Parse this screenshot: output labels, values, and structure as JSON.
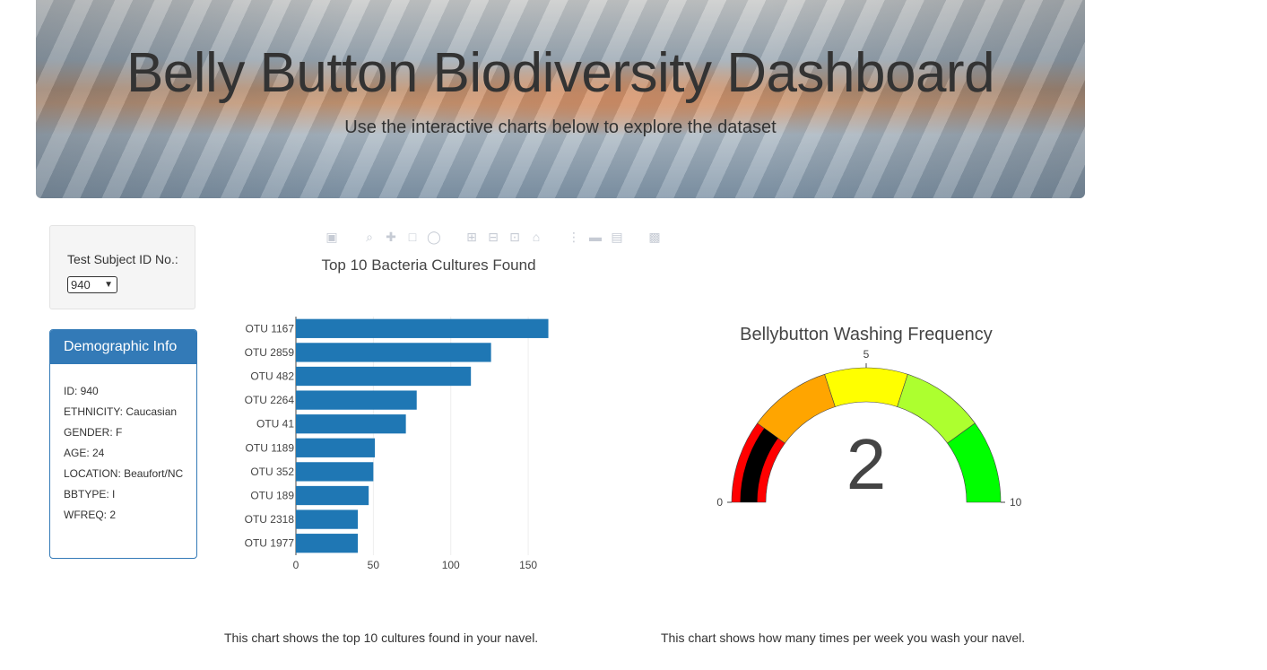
{
  "header": {
    "title": "Belly Button Biodiversity Dashboard",
    "subtitle": "Use the interactive charts below to explore the dataset"
  },
  "selector": {
    "label": "Test Subject ID No.:",
    "selected": "940"
  },
  "demographic": {
    "heading": "Demographic Info",
    "rows": [
      "ID: 940",
      "ETHNICITY: Caucasian",
      "GENDER: F",
      "AGE: 24",
      "LOCATION: Beaufort/NC",
      "BBTYPE: I",
      "WFREQ: 2"
    ]
  },
  "toolbar": {
    "icons": [
      "camera-icon",
      "zoom-icon",
      "pan-icon",
      "box-select-icon",
      "lasso-select-icon",
      "zoom-in-icon",
      "zoom-out-icon",
      "autoscale-icon",
      "reset-axes-icon",
      "spike-lines-icon",
      "hover-closest-icon",
      "hover-compare-icon",
      "plotly-logo-icon"
    ]
  },
  "bar_caption": "This chart shows the top 10 cultures found in your navel.",
  "gauge_caption": "This chart shows how many times per week you wash your navel.",
  "chart_data": [
    {
      "type": "bar",
      "orientation": "horizontal",
      "title": "Top 10 Bacteria Cultures Found",
      "categories": [
        "OTU 1167",
        "OTU 2859",
        "OTU 482",
        "OTU 2264",
        "OTU 41",
        "OTU 1189",
        "OTU 352",
        "OTU 189",
        "OTU 2318",
        "OTU 1977"
      ],
      "values": [
        163,
        126,
        113,
        78,
        71,
        51,
        50,
        47,
        40,
        40
      ],
      "xlim": [
        0,
        165
      ],
      "xticks": [
        "0",
        "50",
        "100",
        "150"
      ],
      "color": "#1f77b4",
      "grid": true
    },
    {
      "type": "gauge",
      "title": "Bellybutton Washing Frequency",
      "value": 2,
      "range": [
        0,
        10
      ],
      "ticks": [
        "0",
        "5",
        "10"
      ],
      "bar_color": "#000000",
      "steps": [
        {
          "range": [
            0,
            2
          ],
          "color": "#ff0000"
        },
        {
          "range": [
            2,
            4
          ],
          "color": "#ffa500"
        },
        {
          "range": [
            4,
            6
          ],
          "color": "#ffff00"
        },
        {
          "range": [
            6,
            8
          ],
          "color": "#adff2f"
        },
        {
          "range": [
            8,
            10
          ],
          "color": "#00ff00"
        }
      ]
    }
  ]
}
